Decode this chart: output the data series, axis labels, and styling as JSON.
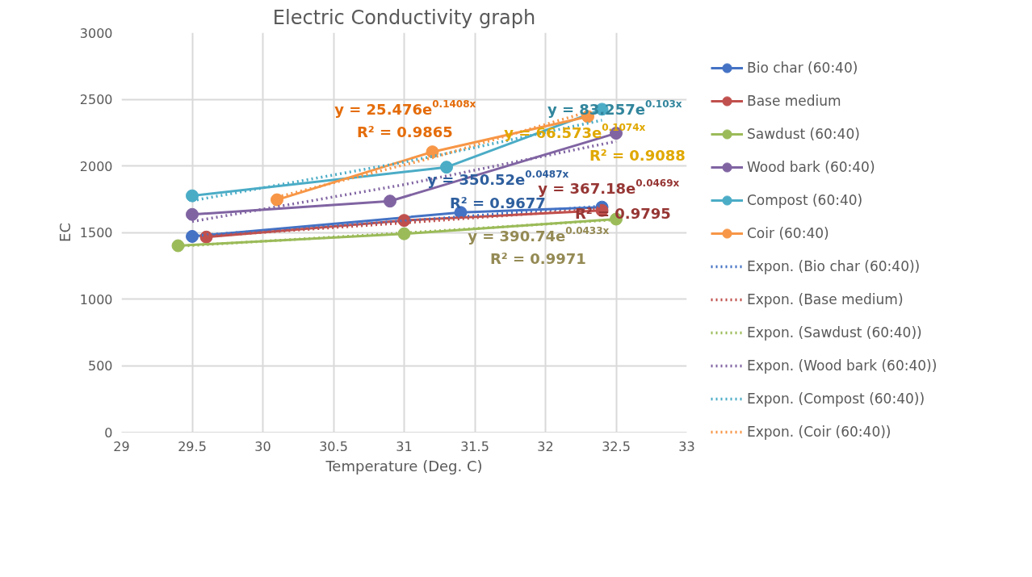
{
  "chart_data": {
    "type": "line",
    "title": "Electric Conductivity graph",
    "xlabel": "Temperature (Deg. C)",
    "ylabel": "EC",
    "xlim": [
      29,
      33
    ],
    "xticks": [
      29,
      29.5,
      30,
      30.5,
      31,
      31.5,
      32,
      32.5,
      33
    ],
    "ylim": [
      0,
      3000
    ],
    "yticks": [
      0,
      500,
      1000,
      1500,
      2000,
      2500,
      3000
    ],
    "grid": true,
    "legend": "right",
    "series": [
      {
        "name": "Bio char (60:40)",
        "color": "#4472c4",
        "marker": "circle",
        "line_style": "solid",
        "x": [
          29.5,
          31.4,
          32.4
        ],
        "values": [
          1470,
          1650,
          1690
        ]
      },
      {
        "name": "Base medium",
        "color": "#c0504d",
        "marker": "circle",
        "line_style": "solid",
        "x": [
          29.6,
          31.0,
          32.4
        ],
        "values": [
          1465,
          1590,
          1665
        ]
      },
      {
        "name": "Sawdust (60:40)",
        "color": "#9bbb59",
        "marker": "circle",
        "line_style": "solid",
        "x": [
          29.4,
          31.0,
          32.5
        ],
        "values": [
          1400,
          1490,
          1600
        ]
      },
      {
        "name": "Wood bark (60:40)",
        "color": "#8064a2",
        "marker": "circle",
        "line_style": "solid",
        "x": [
          29.5,
          30.9,
          32.5
        ],
        "values": [
          1635,
          1735,
          2245
        ]
      },
      {
        "name": "Compost (60:40)",
        "color": "#4bacc6",
        "marker": "circle",
        "line_style": "solid",
        "x": [
          29.5,
          31.3,
          32.4
        ],
        "values": [
          1775,
          1990,
          2425
        ]
      },
      {
        "name": "Coir (60:40)",
        "color": "#f79646",
        "marker": "circle",
        "line_style": "solid",
        "x": [
          30.1,
          31.2,
          32.3
        ],
        "values": [
          1745,
          2105,
          2370
        ]
      },
      {
        "name": "Expon. (Bio char (60:40))",
        "color": "#4472c4",
        "marker": "none",
        "line_style": "dotted",
        "x": [
          29.5,
          31.0,
          32.4
        ],
        "values": [
          1474,
          1586,
          1698
        ]
      },
      {
        "name": "Expon. (Base medium)",
        "color": "#c0504d",
        "marker": "none",
        "line_style": "dotted",
        "x": [
          29.6,
          31.0,
          32.4
        ],
        "values": [
          1472,
          1572,
          1678
        ]
      },
      {
        "name": "Expon. (Sawdust (60:40))",
        "color": "#9bbb59",
        "marker": "none",
        "line_style": "dotted",
        "x": [
          29.4,
          31.0,
          32.5
        ],
        "values": [
          1396,
          1496,
          1596
        ]
      },
      {
        "name": "Expon. (Wood bark (60:40))",
        "color": "#8064a2",
        "marker": "none",
        "line_style": "dotted",
        "x": [
          29.5,
          31.0,
          32.5
        ],
        "values": [
          1582,
          1859,
          2184
        ]
      },
      {
        "name": "Expon. (Compost (60:40))",
        "color": "#4bacc6",
        "marker": "none",
        "line_style": "dotted",
        "x": [
          29.5,
          31.0,
          31.3,
          32.4
        ],
        "values": [
          1738,
          2028,
          2092,
          2343
        ]
      },
      {
        "name": "Expon. (Coir (60:40))",
        "color": "#f79646",
        "marker": "none",
        "line_style": "dotted",
        "x": [
          30.1,
          31.2,
          32.3
        ],
        "values": [
          1765,
          2061,
          2405
        ]
      }
    ],
    "annotations": [
      "y = 25.476e$^{0.1408x}$",
      "R² = 0.9865",
      "y = 83.257e$^{0.103x}$",
      "y = 66.573e$^{0.1074x}$",
      "R² = 0.9088",
      "y = 350.52e$^{0.0487x}$",
      "R² = 0.9677",
      "y = 367.18e$^{0.0469x}$",
      "R² = 0.9795",
      "y = 390.74e$^{0.0433x}$",
      "R² = 0.9971"
    ]
  }
}
